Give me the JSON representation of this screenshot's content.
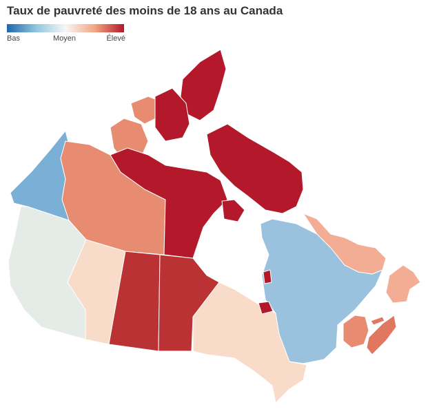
{
  "title": "Taux de pauvreté des moins de 18 ans au Canada",
  "legend": {
    "low": "Bas",
    "mid": "Moyen",
    "high": "Élevé",
    "colors": [
      "#2166ac",
      "#92c5de",
      "#f7f7f7",
      "#f4a582",
      "#b2182b"
    ]
  },
  "regions": [
    {
      "id": "bc",
      "color": "#e5ebe6"
    },
    {
      "id": "ab",
      "color": "#f8dcc9"
    },
    {
      "id": "sk",
      "color": "#bb3234"
    },
    {
      "id": "mb",
      "color": "#bb3234"
    },
    {
      "id": "on",
      "color": "#f8dcc9"
    },
    {
      "id": "qc",
      "color": "#9ac2de"
    },
    {
      "id": "yt",
      "color": "#7aafd6"
    },
    {
      "id": "nt",
      "color": "#e78b71"
    },
    {
      "id": "nu",
      "color": "#b3192a"
    },
    {
      "id": "nl",
      "color": "#f2ad94"
    },
    {
      "id": "nb",
      "color": "#e78b71"
    },
    {
      "id": "ns",
      "color": "#e07861"
    },
    {
      "id": "pe",
      "color": "#e07861"
    }
  ]
}
